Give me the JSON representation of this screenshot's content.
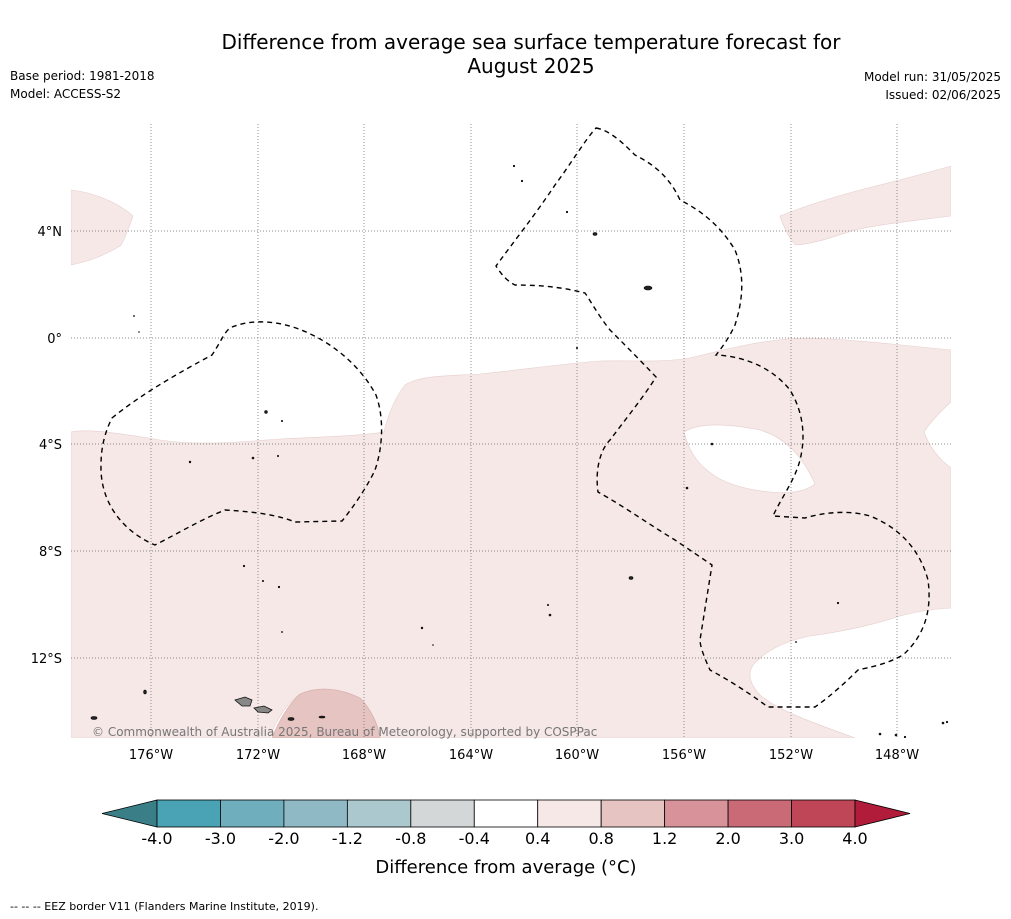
{
  "title_line1": "Difference from average sea surface temperature forecast for",
  "title_line2": "August 2025",
  "base_period": "Base period: 1981-2018",
  "model": "Model: ACCESS-S2",
  "model_run": "Model run: 31/05/2025",
  "issued": "Issued: 02/06/2025",
  "copyright": "© Commonwealth of Australia 2025, Bureau of Meteorology, supported by COSPPac",
  "footnote": "--  --  -- EEZ border V11 (Flanders Marine Institute, 2019).",
  "map": {
    "lat_labels": [
      "4°N",
      "0°",
      "4°S",
      "8°S",
      "12°S"
    ],
    "lon_labels": [
      "176°W",
      "172°W",
      "168°W",
      "164°W",
      "160°W",
      "156°W",
      "152°W",
      "148°W"
    ]
  },
  "colorbar": {
    "title": "Difference from average (°C)",
    "tick_labels": [
      "-4.0",
      "-3.0",
      "-2.0",
      "-1.2",
      "-0.8",
      "-0.4",
      "0.4",
      "0.8",
      "1.2",
      "2.0",
      "3.0",
      "4.0"
    ],
    "colors": [
      "#3a7f88",
      "#4aa3b4",
      "#6fafbd",
      "#8fbac5",
      "#abc8cf",
      "#d4d7d8",
      "#ffffff",
      "#f5e8e7",
      "#e6c4c1",
      "#d8939a",
      "#c96a76",
      "#bf4657",
      "#b01c3a"
    ]
  }
}
